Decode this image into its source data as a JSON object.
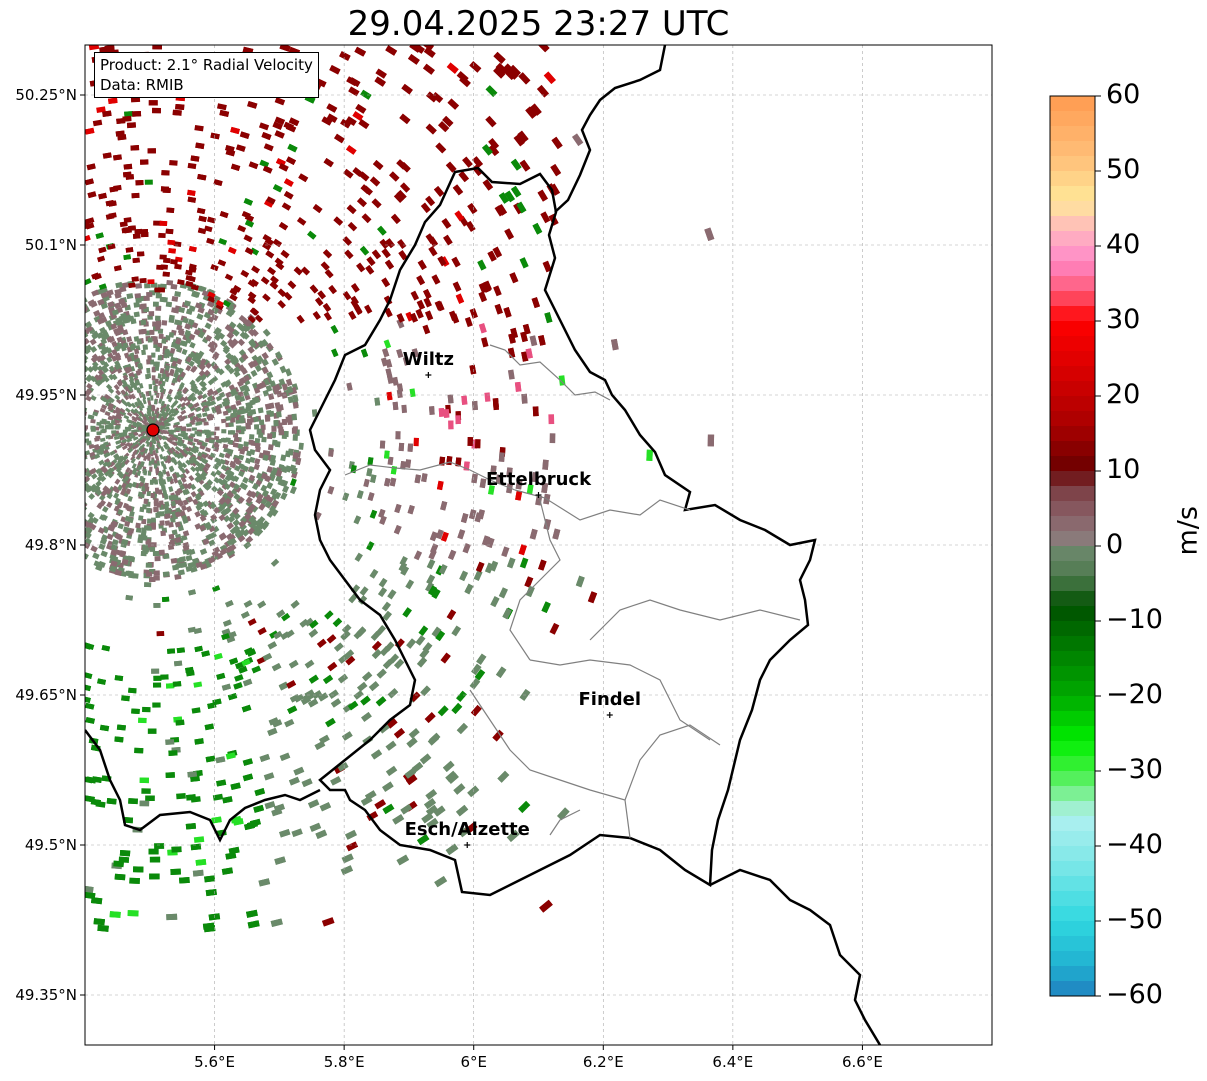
{
  "title": "29.04.2025 23:27 UTC",
  "info": {
    "product": "Product: 2.1° Radial Velocity",
    "source": "Data: RMIB"
  },
  "axes": {
    "x_ticks": [
      "5.6°E",
      "5.8°E",
      "6°E",
      "6.2°E",
      "6.4°E",
      "6.6°E"
    ],
    "y_ticks": [
      "50.25°N",
      "50.1°N",
      "49.95°N",
      "49.8°N",
      "49.65°N",
      "49.5°N",
      "49.35°N"
    ],
    "lon_range": [
      5.4,
      6.8
    ],
    "lat_range": [
      49.3,
      50.3
    ]
  },
  "places": [
    {
      "name": "Wiltz",
      "lon": 5.93,
      "lat": 49.97
    },
    {
      "name": "Ettelbruck",
      "lon": 6.1,
      "lat": 49.85
    },
    {
      "name": "Findel",
      "lon": 6.21,
      "lat": 49.63
    },
    {
      "name": "Esch/Alzette",
      "lon": 5.99,
      "lat": 49.5
    }
  ],
  "radar_site": {
    "lon": 5.505,
    "lat": 49.915,
    "color": "#e00000"
  },
  "colorbar": {
    "label": "m/s",
    "range": [
      -60,
      60
    ],
    "tick_labels": [
      "60",
      "50",
      "40",
      "30",
      "20",
      "10",
      "0",
      "−10",
      "−20",
      "−30",
      "−40",
      "−50",
      "−60"
    ]
  },
  "colors": {
    "strong_away": "#8b0000",
    "away": "#e00000",
    "near_zero_pos": "#8a6a70",
    "near_zero_neg": "#6a8a6a",
    "toward": "#0a8a0a",
    "strong_toward": "#25e025",
    "border": "#000000",
    "canton_border": "#808080"
  }
}
